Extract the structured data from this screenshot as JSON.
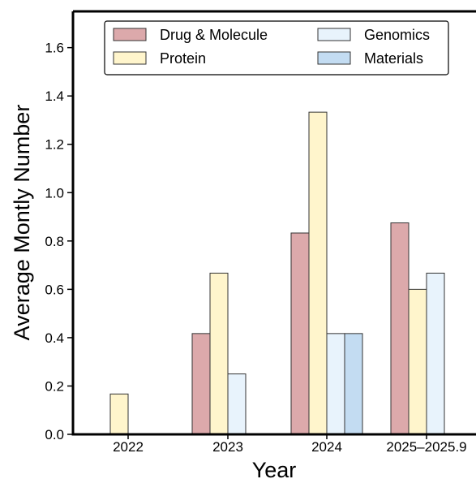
{
  "chart_data": {
    "type": "bar",
    "categories": [
      "2022",
      "2023",
      "2024",
      "2025–2025.9"
    ],
    "series": [
      {
        "name": "Drug & Molecule",
        "values": [
          0,
          0.417,
          0.833,
          0.875
        ],
        "color": "#dca9ab"
      },
      {
        "name": "Protein",
        "values": [
          0.167,
          0.667,
          1.333,
          0.6
        ],
        "color": "#fff5cc"
      },
      {
        "name": "Genomics",
        "values": [
          0,
          0.25,
          0.417,
          0.667
        ],
        "color": "#e8f3fc"
      },
      {
        "name": "Materials",
        "values": [
          0,
          0,
          0.417,
          0
        ],
        "color": "#c3dcf2"
      }
    ],
    "xlabel": "Year",
    "ylabel": "Average Montly Number",
    "ylim": [
      0,
      1.75
    ],
    "yticks": [
      "0.0",
      "0.2",
      "0.4",
      "0.6",
      "0.8",
      "1.0",
      "1.2",
      "1.4",
      "1.6"
    ],
    "grid": false,
    "legend_position": "top"
  }
}
